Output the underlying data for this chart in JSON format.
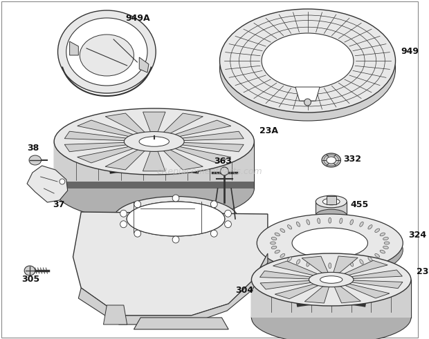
{
  "background_color": "#ffffff",
  "watermark": "eReplacementParts.com",
  "watermark_color": "#bbbbbb",
  "label_color": "#111111",
  "line_color": "#333333",
  "fill_light": "#e8e8e8",
  "fill_mid": "#d0d0d0",
  "fill_dark": "#b0b0b0",
  "parts": [
    {
      "id": "949A",
      "label": "949A"
    },
    {
      "id": "949",
      "label": "949"
    },
    {
      "id": "23A",
      "label": "23A"
    },
    {
      "id": "332",
      "label": "332"
    },
    {
      "id": "455",
      "label": "455"
    },
    {
      "id": "38",
      "label": "38"
    },
    {
      "id": "37",
      "label": "37"
    },
    {
      "id": "363",
      "label": "363"
    },
    {
      "id": "324",
      "label": "324"
    },
    {
      "id": "304",
      "label": "304"
    },
    {
      "id": "305",
      "label": "305"
    },
    {
      "id": "23",
      "label": "23"
    }
  ]
}
